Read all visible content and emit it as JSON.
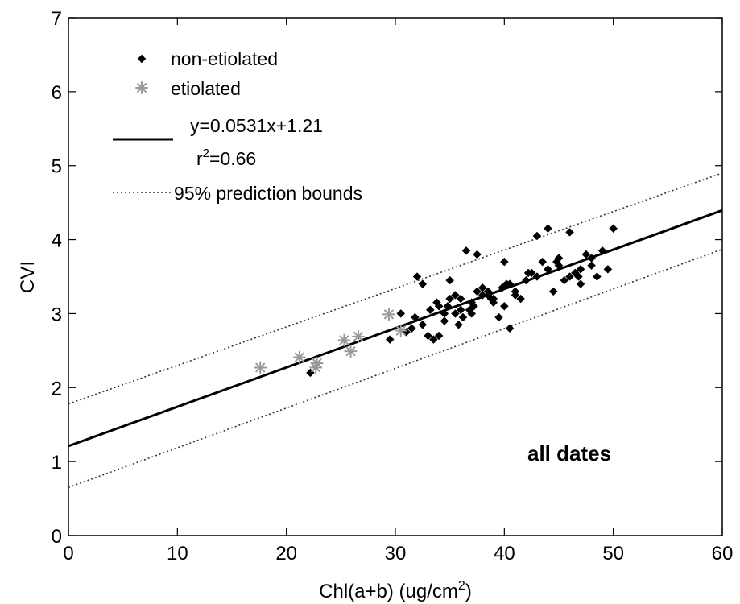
{
  "chart_data": {
    "type": "scatter",
    "title": "",
    "xlabel": "Chl(a+b) (ug/cm",
    "xlabel_sup": "2",
    "xlabel_suffix": ")",
    "ylabel": "CVI",
    "xlim": [
      0,
      60
    ],
    "ylim": [
      0,
      7
    ],
    "xticks": [
      "0",
      "10",
      "20",
      "30",
      "40",
      "50",
      "60"
    ],
    "yticks": [
      "0",
      "1",
      "2",
      "3",
      "4",
      "5",
      "6",
      "7"
    ],
    "grid": false,
    "legend_placement": "top-left",
    "annotation": "all dates",
    "legend": {
      "non_etiolated": "non-etiolated",
      "etiolated": "etiolated",
      "fit_equation": "y=0.0531x+1.21",
      "r2_prefix": "r",
      "r2_sup": "2",
      "r2_suffix": "=0.66",
      "bounds": "95% prediction bounds"
    },
    "colors": {
      "non_etiolated": "#000000",
      "etiolated": "#999999",
      "fit": "#000000",
      "bounds": "#333333"
    },
    "fit": {
      "slope": 0.0531,
      "intercept": 1.21
    },
    "bounds": {
      "upper": [
        [
          0,
          1.78
        ],
        [
          60,
          4.9
        ]
      ],
      "lower": [
        [
          0,
          0.65
        ],
        [
          60,
          3.87
        ]
      ]
    },
    "series": [
      {
        "name": "non-etiolated",
        "marker": "diamond",
        "x": [
          22.2,
          29.5,
          30.5,
          31.0,
          31.5,
          32.0,
          32.5,
          33.0,
          33.5,
          34.0,
          34.5,
          35.0,
          35.5,
          36.0,
          36.5,
          37.0,
          37.5,
          38.0,
          38.5,
          39.0,
          39.5,
          40.0,
          40.5,
          41.0,
          42.0,
          43.0,
          44.0,
          45.0,
          46.0,
          47.0,
          48.0,
          49.0,
          50.0,
          31.8,
          32.5,
          33.2,
          34.0,
          34.8,
          35.5,
          36.2,
          37.0,
          38.0,
          39.0,
          40.0,
          41.0,
          42.5,
          43.5,
          44.5,
          45.5,
          46.5,
          47.5,
          48.5,
          35.0,
          36.0,
          37.5,
          38.5,
          40.5,
          44.0,
          46.0,
          48.0,
          34.5,
          33.8,
          36.8,
          39.8,
          41.5,
          43.0,
          45.0,
          47.0,
          49.5,
          35.8,
          37.2,
          38.8,
          40.2,
          42.2,
          44.8,
          46.8
        ],
        "y": [
          2.2,
          2.65,
          3.0,
          2.75,
          2.8,
          3.5,
          3.4,
          2.7,
          2.65,
          3.1,
          2.9,
          3.45,
          3.0,
          3.2,
          3.85,
          3.0,
          3.8,
          3.25,
          3.3,
          3.15,
          2.95,
          3.7,
          2.8,
          3.3,
          3.45,
          4.05,
          4.15,
          3.65,
          4.1,
          3.6,
          3.75,
          3.85,
          4.15,
          2.95,
          2.85,
          3.05,
          2.7,
          3.1,
          3.25,
          2.95,
          3.15,
          3.35,
          3.2,
          3.1,
          3.25,
          3.55,
          3.7,
          3.3,
          3.45,
          3.55,
          3.8,
          3.5,
          3.2,
          3.05,
          3.3,
          3.25,
          3.4,
          3.6,
          3.5,
          3.65,
          3.0,
          3.15,
          3.05,
          3.35,
          3.2,
          3.5,
          3.75,
          3.4,
          3.6,
          2.85,
          3.1,
          3.2,
          3.4,
          3.55,
          3.7,
          3.5
        ]
      },
      {
        "name": "etiolated",
        "marker": "asterisk",
        "x": [
          17.6,
          21.2,
          22.7,
          22.8,
          25.3,
          25.9,
          26.6,
          29.4,
          30.5
        ],
        "y": [
          2.27,
          2.41,
          2.27,
          2.33,
          2.64,
          2.49,
          2.69,
          2.99,
          2.77
        ]
      }
    ]
  }
}
